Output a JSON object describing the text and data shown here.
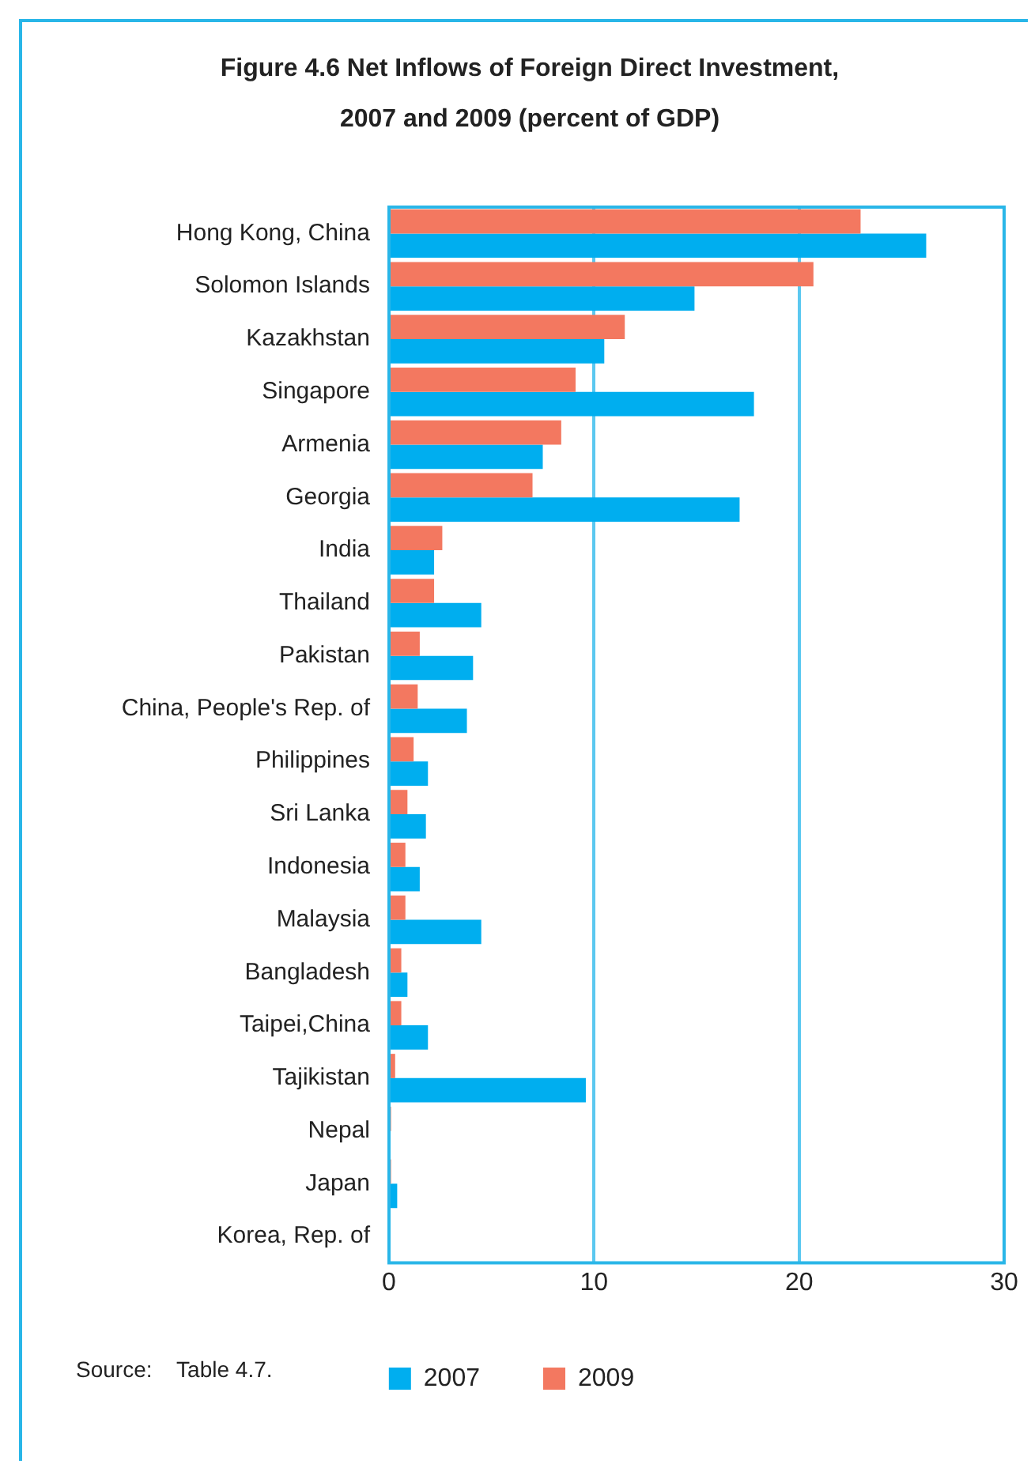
{
  "chart_data": {
    "type": "bar",
    "orientation": "horizontal",
    "title": "Figure 4.6 Net Inflows of Foreign Direct Investment, 2007 and 2009 (percent of GDP)",
    "categories": [
      "Hong Kong, China",
      "Solomon Islands",
      "Kazakhstan",
      "Singapore",
      "Armenia",
      "Georgia",
      "India",
      "Thailand",
      "Pakistan",
      "China, People's Rep. of",
      "Philippines",
      "Sri Lanka",
      "Indonesia",
      "Malaysia",
      "Bangladesh",
      "Taipei,China",
      "Tajikistan",
      "Nepal",
      "Japan",
      "Korea, Rep. of"
    ],
    "series": [
      {
        "name": "2007",
        "color": "#00aeef",
        "values": [
          26.2,
          14.9,
          10.5,
          17.8,
          7.5,
          17.1,
          2.2,
          4.5,
          4.1,
          3.8,
          1.9,
          1.8,
          1.5,
          4.5,
          0.9,
          1.9,
          9.6,
          0,
          0.4,
          0
        ]
      },
      {
        "name": "2009",
        "color": "#f37860",
        "values": [
          23.0,
          20.7,
          11.5,
          9.1,
          8.4,
          7.0,
          2.6,
          2.2,
          1.5,
          1.4,
          1.2,
          0.9,
          0.8,
          0.8,
          0.6,
          0.6,
          0.3,
          0.1,
          0.1,
          0
        ]
      }
    ],
    "xlim": [
      0,
      30
    ],
    "xticks": [
      0,
      10,
      20,
      30
    ],
    "grid": "x",
    "legend": "bottom",
    "annotations": [
      "Source:    Table 4.7."
    ]
  }
}
